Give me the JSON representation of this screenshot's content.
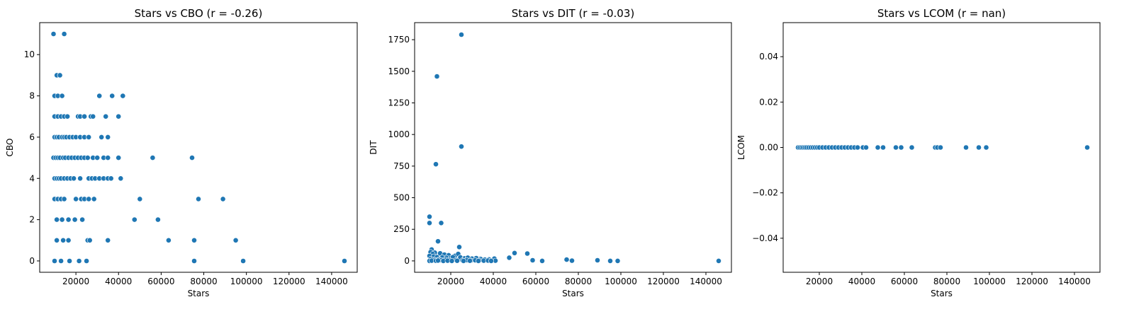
{
  "chart_data": [
    {
      "type": "scatter",
      "title": "Stars vs CBO (r = -0.26)",
      "xlabel": "Stars",
      "ylabel": "CBO",
      "xlim": [
        3000,
        152000
      ],
      "ylim": [
        -0.55,
        11.55
      ],
      "xticks": [
        20000,
        40000,
        60000,
        80000,
        100000,
        120000,
        140000
      ],
      "yticks": [
        0,
        2,
        4,
        6,
        8,
        10
      ],
      "grid": false,
      "points": [
        [
          9500,
          11
        ],
        [
          14500,
          11
        ],
        [
          11000,
          9
        ],
        [
          12500,
          9
        ],
        [
          10000,
          8
        ],
        [
          11500,
          8
        ],
        [
          13500,
          8
        ],
        [
          31000,
          8
        ],
        [
          37000,
          8
        ],
        [
          42000,
          8
        ],
        [
          10000,
          7
        ],
        [
          11500,
          7
        ],
        [
          13000,
          7
        ],
        [
          14500,
          7
        ],
        [
          16000,
          7
        ],
        [
          21000,
          7
        ],
        [
          22000,
          7
        ],
        [
          24000,
          7
        ],
        [
          27000,
          7
        ],
        [
          28000,
          7
        ],
        [
          34000,
          7
        ],
        [
          40000,
          7
        ],
        [
          10000,
          6
        ],
        [
          11000,
          6
        ],
        [
          12000,
          6
        ],
        [
          13500,
          6
        ],
        [
          14500,
          6
        ],
        [
          15500,
          6
        ],
        [
          17000,
          6
        ],
        [
          18500,
          6
        ],
        [
          20000,
          6
        ],
        [
          22000,
          6
        ],
        [
          24000,
          6
        ],
        [
          26000,
          6
        ],
        [
          32000,
          6
        ],
        [
          35000,
          6
        ],
        [
          9500,
          5
        ],
        [
          10500,
          5
        ],
        [
          11500,
          5
        ],
        [
          12500,
          5
        ],
        [
          14000,
          5
        ],
        [
          15000,
          5
        ],
        [
          16500,
          5
        ],
        [
          18000,
          5
        ],
        [
          19500,
          5
        ],
        [
          21000,
          5
        ],
        [
          22500,
          5
        ],
        [
          24000,
          5
        ],
        [
          25500,
          5
        ],
        [
          28000,
          5
        ],
        [
          30000,
          5
        ],
        [
          33000,
          5
        ],
        [
          35000,
          5
        ],
        [
          40000,
          5
        ],
        [
          56000,
          5
        ],
        [
          74500,
          5
        ],
        [
          10000,
          4
        ],
        [
          11000,
          4
        ],
        [
          12000,
          4
        ],
        [
          13000,
          4
        ],
        [
          14500,
          4
        ],
        [
          16000,
          4
        ],
        [
          17500,
          4
        ],
        [
          19000,
          4
        ],
        [
          22000,
          4
        ],
        [
          26000,
          4
        ],
        [
          27500,
          4
        ],
        [
          29000,
          4
        ],
        [
          31000,
          4
        ],
        [
          33000,
          4
        ],
        [
          35000,
          4
        ],
        [
          36500,
          4
        ],
        [
          41000,
          4
        ],
        [
          10000,
          3
        ],
        [
          11500,
          3
        ],
        [
          13000,
          3
        ],
        [
          14500,
          3
        ],
        [
          20000,
          3
        ],
        [
          22500,
          3
        ],
        [
          24000,
          3
        ],
        [
          26000,
          3
        ],
        [
          28500,
          3
        ],
        [
          50000,
          3
        ],
        [
          77500,
          3
        ],
        [
          89000,
          3
        ],
        [
          11000,
          2
        ],
        [
          13500,
          2
        ],
        [
          16500,
          2
        ],
        [
          19500,
          2
        ],
        [
          23000,
          2
        ],
        [
          47500,
          2
        ],
        [
          58500,
          2
        ],
        [
          11000,
          1
        ],
        [
          14000,
          1
        ],
        [
          16500,
          1
        ],
        [
          25500,
          1
        ],
        [
          26500,
          1
        ],
        [
          35000,
          1
        ],
        [
          63500,
          1
        ],
        [
          75500,
          1
        ],
        [
          95000,
          1
        ],
        [
          10000,
          0
        ],
        [
          13000,
          0
        ],
        [
          17000,
          0
        ],
        [
          21500,
          0
        ],
        [
          25000,
          0
        ],
        [
          75500,
          0
        ],
        [
          98500,
          0
        ],
        [
          146000,
          0
        ]
      ]
    },
    {
      "type": "scatter",
      "title": "Stars vs DIT (r = -0.03)",
      "xlabel": "Stars",
      "ylabel": "DIT",
      "xlim": [
        3000,
        152000
      ],
      "ylim": [
        -90,
        1885
      ],
      "xticks": [
        20000,
        40000,
        60000,
        80000,
        100000,
        120000,
        140000
      ],
      "yticks": [
        0,
        250,
        500,
        750,
        1000,
        1250,
        1500,
        1750
      ],
      "grid": false,
      "points": [
        [
          25000,
          1790
        ],
        [
          13500,
          1460
        ],
        [
          25000,
          905
        ],
        [
          13000,
          765
        ],
        [
          10000,
          350
        ],
        [
          10000,
          300
        ],
        [
          15500,
          300
        ],
        [
          14000,
          155
        ],
        [
          24000,
          110
        ],
        [
          11000,
          90
        ],
        [
          10500,
          70
        ],
        [
          12500,
          65
        ],
        [
          15000,
          60
        ],
        [
          11500,
          55
        ],
        [
          17000,
          50
        ],
        [
          19000,
          45
        ],
        [
          22000,
          40
        ],
        [
          23500,
          55
        ],
        [
          50000,
          62
        ],
        [
          56000,
          58
        ],
        [
          10000,
          40
        ],
        [
          12000,
          35
        ],
        [
          13500,
          30
        ],
        [
          16000,
          28
        ],
        [
          18000,
          25
        ],
        [
          20000,
          22
        ],
        [
          21000,
          30
        ],
        [
          24500,
          28
        ],
        [
          26500,
          20
        ],
        [
          28000,
          25
        ],
        [
          30000,
          18
        ],
        [
          32000,
          22
        ],
        [
          34000,
          15
        ],
        [
          36000,
          10
        ],
        [
          38000,
          12
        ],
        [
          40500,
          18
        ],
        [
          47500,
          25
        ],
        [
          10500,
          15
        ],
        [
          11500,
          10
        ],
        [
          12500,
          8
        ],
        [
          14500,
          12
        ],
        [
          15500,
          6
        ],
        [
          17500,
          9
        ],
        [
          19500,
          5
        ],
        [
          22500,
          7
        ],
        [
          25500,
          4
        ],
        [
          27500,
          6
        ],
        [
          29500,
          3
        ],
        [
          31500,
          5
        ],
        [
          33500,
          4
        ],
        [
          35500,
          2
        ],
        [
          37500,
          3
        ],
        [
          41000,
          2
        ],
        [
          10000,
          0
        ],
        [
          11000,
          2
        ],
        [
          13000,
          1
        ],
        [
          14000,
          3
        ],
        [
          16500,
          0
        ],
        [
          18500,
          2
        ],
        [
          20500,
          0
        ],
        [
          23000,
          1
        ],
        [
          26000,
          0
        ],
        [
          29000,
          1
        ],
        [
          33000,
          0
        ],
        [
          39000,
          0
        ],
        [
          58500,
          5
        ],
        [
          63000,
          0
        ],
        [
          74500,
          10
        ],
        [
          77000,
          2
        ],
        [
          89000,
          5
        ],
        [
          95000,
          0
        ],
        [
          98500,
          0
        ],
        [
          146000,
          0
        ]
      ]
    },
    {
      "type": "scatter",
      "title": "Stars vs LCOM (r = nan)",
      "xlabel": "Stars",
      "ylabel": "LCOM",
      "xlim": [
        3000,
        152000
      ],
      "ylim": [
        -0.055,
        0.055
      ],
      "xticks": [
        20000,
        40000,
        60000,
        80000,
        100000,
        120000,
        140000
      ],
      "yticks": [
        -0.04,
        -0.02,
        0.0,
        0.02,
        0.04
      ],
      "ytick_labels": [
        "−0.04",
        "−0.02",
        "0.00",
        "0.02",
        "0.04"
      ],
      "grid": false,
      "points": [
        [
          10000,
          0
        ],
        [
          10800,
          0
        ],
        [
          11600,
          0
        ],
        [
          12400,
          0
        ],
        [
          13200,
          0
        ],
        [
          14000,
          0
        ],
        [
          15000,
          0
        ],
        [
          16000,
          0
        ],
        [
          17000,
          0
        ],
        [
          18000,
          0
        ],
        [
          19000,
          0
        ],
        [
          20000,
          0
        ],
        [
          21500,
          0
        ],
        [
          23000,
          0
        ],
        [
          24500,
          0
        ],
        [
          26000,
          0
        ],
        [
          27500,
          0
        ],
        [
          29000,
          0
        ],
        [
          30500,
          0
        ],
        [
          32000,
          0
        ],
        [
          33500,
          0
        ],
        [
          35000,
          0
        ],
        [
          36500,
          0
        ],
        [
          38000,
          0
        ],
        [
          40500,
          0
        ],
        [
          42000,
          0
        ],
        [
          47500,
          0
        ],
        [
          50000,
          0
        ],
        [
          56000,
          0
        ],
        [
          58500,
          0
        ],
        [
          63500,
          0
        ],
        [
          74500,
          0
        ],
        [
          75500,
          0
        ],
        [
          77000,
          0
        ],
        [
          89000,
          0
        ],
        [
          95000,
          0
        ],
        [
          98500,
          0
        ],
        [
          146000,
          0
        ]
      ]
    }
  ]
}
